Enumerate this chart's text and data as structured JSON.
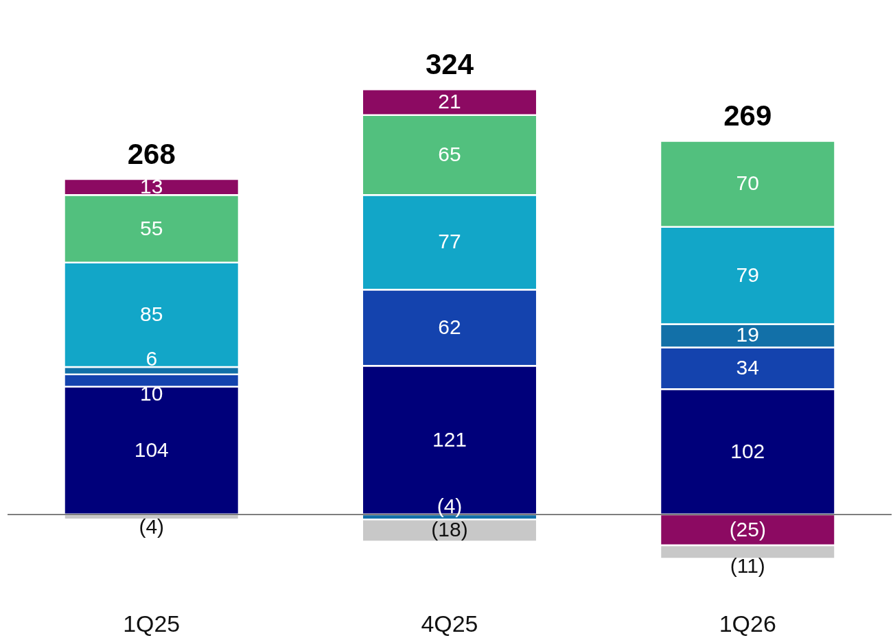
{
  "chart_data": {
    "type": "bar",
    "stacked": true,
    "tick_labels": "x",
    "categories": [
      "1Q25",
      "4Q25",
      "1Q26"
    ],
    "series": [
      {
        "color": "#00007a",
        "values": [
          104,
          121,
          102
        ],
        "value_labels": [
          "104",
          "121",
          "102"
        ]
      },
      {
        "color": "#1443ae",
        "values": [
          10,
          62,
          34
        ],
        "value_labels": [
          "10",
          "62",
          "34"
        ]
      },
      {
        "color": "#1270a8",
        "values": [
          6,
          -4,
          19
        ],
        "value_labels": [
          "6",
          "(4)",
          "19"
        ]
      },
      {
        "color": "#12a6c8",
        "values": [
          85,
          77,
          79
        ],
        "value_labels": [
          "85",
          "77",
          "79"
        ]
      },
      {
        "color": "#52c07e",
        "values": [
          55,
          65,
          70
        ],
        "value_labels": [
          "55",
          "65",
          "70"
        ]
      },
      {
        "color": "#8c0a62",
        "values": [
          13,
          21,
          -25
        ],
        "value_labels": [
          "13",
          "21",
          "(25)"
        ]
      },
      {
        "color": "#c8c8c8",
        "values": [
          -4,
          -18,
          -11
        ],
        "value_labels": [
          "(4)",
          "(18)",
          "(11)"
        ]
      }
    ],
    "totals": [
      "268",
      "324",
      "269"
    ]
  }
}
